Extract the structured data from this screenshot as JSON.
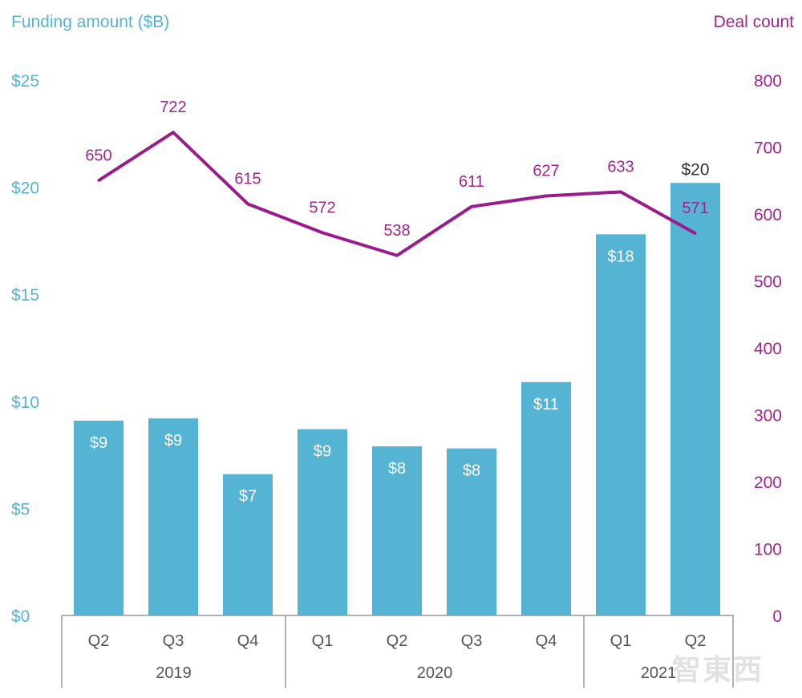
{
  "chart_data": {
    "type": "bar+line",
    "left_axis_title": "Funding amount ($B)",
    "right_axis_title": "Deal count",
    "left_ticks": [
      "$0",
      "$5",
      "$10",
      "$15",
      "$20",
      "$25"
    ],
    "left_ylim": [
      0,
      25
    ],
    "right_ticks": [
      "0",
      "100",
      "200",
      "300",
      "400",
      "500",
      "600",
      "700",
      "800"
    ],
    "right_ylim": [
      0,
      800
    ],
    "categories": [
      "Q2",
      "Q3",
      "Q4",
      "Q1",
      "Q2",
      "Q3",
      "Q4",
      "Q1",
      "Q2"
    ],
    "groups": [
      {
        "label": "2019",
        "count": 3
      },
      {
        "label": "2020",
        "count": 4
      },
      {
        "label": "2021",
        "count": 2
      }
    ],
    "series": [
      {
        "type": "bar",
        "axis": "left",
        "values": [
          9.1,
          9.2,
          6.6,
          8.7,
          7.9,
          7.8,
          10.9,
          17.8,
          20.2
        ],
        "labels": [
          "$9",
          "$9",
          "$7",
          "$9",
          "$8",
          "$8",
          "$11",
          "$18",
          "$20"
        ],
        "color": "#55b3d3"
      },
      {
        "type": "line",
        "axis": "right",
        "values": [
          650,
          722,
          615,
          572,
          538,
          611,
          627,
          633,
          571
        ],
        "labels": [
          "650",
          "722",
          "615",
          "572",
          "538",
          "611",
          "627",
          "633",
          "571"
        ],
        "color": "#9a1b8c"
      }
    ],
    "grid": false
  },
  "watermark": "智東西"
}
